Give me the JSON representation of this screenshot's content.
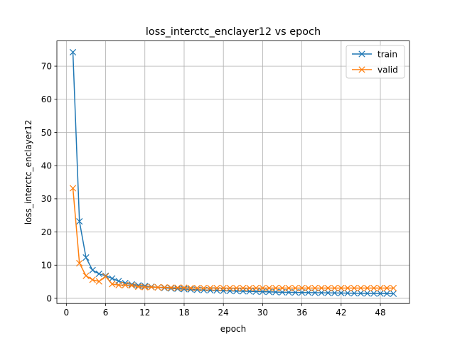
{
  "chart_data": {
    "type": "line",
    "title": "loss_interctc_enclayer12 vs epoch",
    "xlabel": "epoch",
    "ylabel": "loss_interctc_enclayer12",
    "xlim": [
      -1.45,
      52.45
    ],
    "ylim": [
      -1.55,
      77.6
    ],
    "xticks": [
      0,
      6,
      12,
      18,
      24,
      30,
      36,
      42,
      48
    ],
    "yticks": [
      0,
      10,
      20,
      30,
      40,
      50,
      60,
      70
    ],
    "grid": true,
    "legend_position": "top-right",
    "marker": "x",
    "x": [
      1,
      2,
      3,
      4,
      5,
      6,
      7,
      8,
      9,
      10,
      11,
      12,
      13,
      14,
      15,
      16,
      17,
      18,
      19,
      20,
      21,
      22,
      23,
      24,
      25,
      26,
      27,
      28,
      29,
      30,
      31,
      32,
      33,
      34,
      35,
      36,
      37,
      38,
      39,
      40,
      41,
      42,
      43,
      44,
      45,
      46,
      47,
      48,
      49,
      50
    ],
    "series": [
      {
        "name": "train",
        "color": "#1f77b4",
        "values": [
          74.2,
          23.2,
          12.3,
          8.5,
          7.4,
          6.8,
          6.0,
          5.2,
          4.6,
          4.2,
          3.9,
          3.7,
          3.5,
          3.3,
          3.15,
          3.0,
          2.9,
          2.8,
          2.7,
          2.6,
          2.5,
          2.45,
          2.4,
          2.3,
          2.25,
          2.2,
          2.15,
          2.1,
          2.05,
          2.0,
          1.95,
          1.9,
          1.85,
          1.8,
          1.78,
          1.75,
          1.72,
          1.7,
          1.68,
          1.65,
          1.62,
          1.6,
          1.58,
          1.55,
          1.53,
          1.5,
          1.48,
          1.46,
          1.44,
          1.42
        ]
      },
      {
        "name": "valid",
        "color": "#ff7f0e",
        "values": [
          33.2,
          10.6,
          6.8,
          5.6,
          5.1,
          6.6,
          4.3,
          4.0,
          4.0,
          3.9,
          3.5,
          3.4,
          3.4,
          3.3,
          3.3,
          3.2,
          3.2,
          3.2,
          3.1,
          3.1,
          3.1,
          3.1,
          3.1,
          3.1,
          3.1,
          3.1,
          3.1,
          3.1,
          3.1,
          3.1,
          3.1,
          3.1,
          3.1,
          3.1,
          3.1,
          3.1,
          3.1,
          3.1,
          3.1,
          3.1,
          3.1,
          3.1,
          3.1,
          3.1,
          3.1,
          3.1,
          3.1,
          3.1,
          3.1,
          3.1
        ]
      }
    ]
  }
}
